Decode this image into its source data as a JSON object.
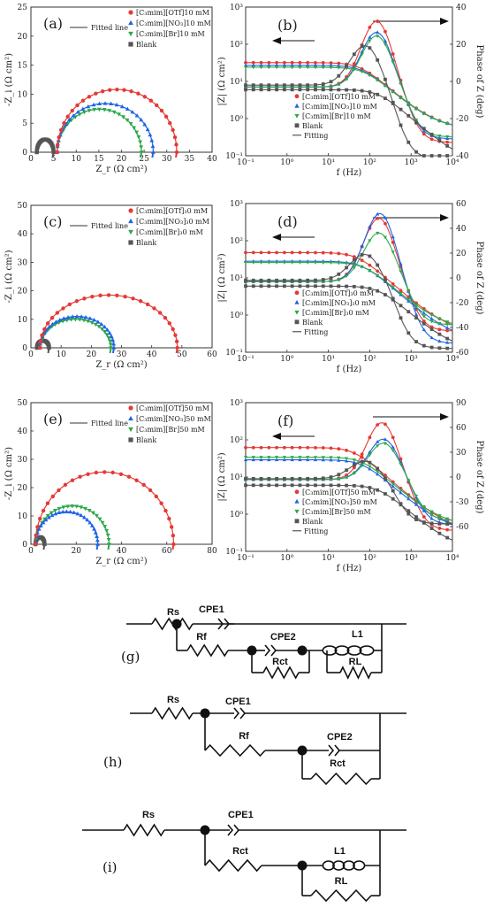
{
  "colors": {
    "otf": "#e53935",
    "no3": "#1e64e6",
    "br": "#2ea84a",
    "blank": "#555555"
  },
  "chart_data": [
    {
      "type": "scatter",
      "panel": "(a)",
      "xlabel": "Z_r (Ω cm²)",
      "ylabel": "-Z_i (Ω cm²)",
      "xlim": [
        0,
        40
      ],
      "ylim": [
        0,
        25
      ],
      "xticks": [
        0,
        5,
        10,
        15,
        20,
        25,
        30,
        35,
        40
      ],
      "yticks": [
        0,
        5,
        10,
        15,
        20,
        25
      ],
      "fit_label": "Fitted line",
      "series": [
        {
          "name": "[C3mim][OTf]10 mM",
          "color": "otf",
          "marker": "circle",
          "r0": 5.8,
          "r1": 32.2,
          "peak": 10.8
        },
        {
          "name": "[C3mim][NO3]10 mM",
          "color": "no3",
          "marker": "triangle-up",
          "r0": 5.8,
          "r1": 27.0,
          "peak": 8.4
        },
        {
          "name": "[C3mim][Br]10 mM",
          "color": "br",
          "marker": "triangle-down",
          "r0": 5.8,
          "r1": 24.4,
          "peak": 7.4
        },
        {
          "name": "Blank",
          "color": "blank",
          "marker": "square",
          "r0": 1.3,
          "r1": 5.0,
          "peak": 2.2
        }
      ]
    },
    {
      "type": "line",
      "panel": "(b)",
      "xlabel": "f (Hz)",
      "ylabel": "|Z| (Ω cm²)",
      "ylabel2": "Phase of Z (deg)",
      "xscale": "log",
      "yscale": "log",
      "xlim": [
        -1,
        4
      ],
      "ylim": [
        -1,
        3
      ],
      "y2lim": [
        -40,
        40
      ],
      "xticklabels": [
        "10⁻¹",
        "10⁰",
        "10¹",
        "10²",
        "10³",
        "10⁴"
      ],
      "yticklabels": [
        "10⁻¹",
        "10⁰",
        "10¹",
        "10²",
        "10³"
      ],
      "y2ticks": [
        -40,
        -20,
        0,
        20,
        40
      ],
      "fit_label": "Fitting",
      "series": [
        {
          "name": "[C3mim][OTf]10 mM",
          "color": "otf",
          "marker": "circle",
          "zlow": 32,
          "fc": 70,
          "zhigh": 0.5,
          "phase_peak": 36,
          "phase_f": 150,
          "phase_low": -3,
          "phase_high": -30
        },
        {
          "name": "[C3mim][NO3]10 mM",
          "color": "no3",
          "marker": "triangle-up",
          "zlow": 27,
          "fc": 80,
          "zhigh": 0.5,
          "phase_peak": 30,
          "phase_f": 150,
          "phase_low": -3,
          "phase_high": -28
        },
        {
          "name": "[C3mim][Br]10 mM",
          "color": "br",
          "marker": "triangle-down",
          "zlow": 24,
          "fc": 90,
          "zhigh": 0.5,
          "phase_peak": 28,
          "phase_f": 150,
          "phase_low": -3,
          "phase_high": -27
        },
        {
          "name": "Blank",
          "color": "blank",
          "marker": "square",
          "zlow": 6,
          "fc": 200,
          "zhigh": 0.05,
          "phase_peak": 22,
          "phase_f": 80,
          "phase_low": -2,
          "phase_high": -40
        }
      ]
    },
    {
      "type": "scatter",
      "panel": "(c)",
      "xlabel": "Z_r (Ω cm²)",
      "ylabel": "-Z_i (Ω cm²)",
      "xlim": [
        0,
        60
      ],
      "ylim": [
        0,
        50
      ],
      "xticks": [
        0,
        10,
        20,
        30,
        40,
        50,
        60
      ],
      "yticks": [
        0,
        10,
        20,
        30,
        40,
        50
      ],
      "fit_label": "Fitted line",
      "series": [
        {
          "name": "[C3mim][OTf]30 mM",
          "color": "otf",
          "marker": "circle",
          "r0": 3,
          "r1": 48.5,
          "peak": 18.5
        },
        {
          "name": "[C3mim][NO3]30 mM",
          "color": "no3",
          "marker": "triangle-up",
          "r0": 3,
          "r1": 27.5,
          "peak": 11
        },
        {
          "name": "[C3mim][Br]30 mM",
          "color": "br",
          "marker": "triangle-down",
          "r0": 3,
          "r1": 26.5,
          "peak": 10
        },
        {
          "name": "Blank",
          "color": "blank",
          "marker": "square",
          "r0": 2,
          "r1": 6,
          "peak": 2.5
        }
      ]
    },
    {
      "type": "line",
      "panel": "(d)",
      "xlabel": "f (Hz)",
      "ylabel": "|Z| (Ω cm²)",
      "ylabel2": "Phase of Z (deg)",
      "xscale": "log",
      "yscale": "log",
      "xlim": [
        -1,
        4
      ],
      "ylim": [
        -1,
        3
      ],
      "y2lim": [
        -60,
        60
      ],
      "xticklabels": [
        "10⁻¹",
        "10⁰",
        "10¹",
        "10²",
        "10³",
        "10⁴"
      ],
      "yticklabels": [
        "10⁻¹",
        "10⁰",
        "10¹",
        "10²",
        "10³"
      ],
      "y2ticks": [
        -60,
        -40,
        -20,
        0,
        20,
        40,
        60
      ],
      "fit_label": "Fitting",
      "series": [
        {
          "name": "[C3mim][OTf]30 mM",
          "color": "otf",
          "marker": "circle",
          "zlow": 48,
          "fc": 60,
          "zhigh": 0.3,
          "phase_peak": 52,
          "phase_f": 170,
          "phase_low": -3,
          "phase_high": -40
        },
        {
          "name": "[C3mim][NO3]30 mM",
          "color": "no3",
          "marker": "triangle-up",
          "zlow": 28,
          "fc": 80,
          "zhigh": 0.2,
          "phase_peak": 56,
          "phase_f": 180,
          "phase_low": -3,
          "phase_high": -50
        },
        {
          "name": "[C3mim][Br]30 mM",
          "color": "br",
          "marker": "triangle-down",
          "zlow": 26,
          "fc": 90,
          "zhigh": 0.4,
          "phase_peak": 40,
          "phase_f": 170,
          "phase_low": -3,
          "phase_high": -35
        },
        {
          "name": "Blank",
          "color": "blank",
          "marker": "square",
          "zlow": 6,
          "fc": 200,
          "zhigh": 0.1,
          "phase_peak": 22,
          "phase_f": 80,
          "phase_low": -2,
          "phase_high": -55
        }
      ]
    },
    {
      "type": "scatter",
      "panel": "(e)",
      "xlabel": "Z_r (Ω cm²)",
      "ylabel": "-Z_i (Ω cm²)",
      "xlim": [
        0,
        80
      ],
      "ylim": [
        0,
        50
      ],
      "xticks": [
        0,
        20,
        40,
        60,
        80
      ],
      "yticks": [
        0,
        10,
        20,
        30,
        40,
        50
      ],
      "fit_label": "Fitted line",
      "series": [
        {
          "name": "[C3mim][OTf]50 mM",
          "color": "otf",
          "marker": "circle",
          "r0": 2,
          "r1": 63,
          "peak": 25.5
        },
        {
          "name": "[C3mim][NO3]50 mM",
          "color": "no3",
          "marker": "triangle-up",
          "r0": 2,
          "r1": 29.5,
          "peak": 11.5
        },
        {
          "name": "[C3mim][Br]50 mM",
          "color": "br",
          "marker": "triangle-down",
          "r0": 2,
          "r1": 34.5,
          "peak": 13.5
        },
        {
          "name": "Blank",
          "color": "blank",
          "marker": "square",
          "r0": 2,
          "r1": 6,
          "peak": 2.5
        }
      ]
    },
    {
      "type": "line",
      "panel": "(f)",
      "xlabel": "f (Hz)",
      "ylabel": "|Z| (Ω cm²)",
      "ylabel2": "Phase of Z (deg)",
      "xscale": "log",
      "yscale": "log",
      "xlim": [
        -1,
        4
      ],
      "ylim": [
        -1,
        3
      ],
      "y2lim": [
        -90,
        90
      ],
      "xticklabels": [
        "10⁻¹",
        "10⁰",
        "10¹",
        "10²",
        "10³",
        "10⁴"
      ],
      "yticklabels": [
        "10⁻¹",
        "10⁰",
        "10¹",
        "10²",
        "10³"
      ],
      "y2ticks": [
        -60,
        -30,
        0,
        30,
        60,
        90
      ],
      "fit_label": "Fitting",
      "series": [
        {
          "name": "[C3mim][OTf]50 mM",
          "color": "otf",
          "marker": "circle",
          "zlow": 62,
          "fc": 50,
          "zhigh": 0.3,
          "phase_peak": 70,
          "phase_f": 200,
          "phase_low": -3,
          "phase_high": -62
        },
        {
          "name": "[C3mim][NO3]50 mM",
          "color": "no3",
          "marker": "triangle-up",
          "zlow": 29,
          "fc": 80,
          "zhigh": 0.35,
          "phase_peak": 50,
          "phase_f": 220,
          "phase_low": -3,
          "phase_high": -55
        },
        {
          "name": "[C3mim][Br]50 mM",
          "color": "br",
          "marker": "triangle-down",
          "zlow": 34,
          "fc": 80,
          "zhigh": 0.45,
          "phase_peak": 45,
          "phase_f": 220,
          "phase_low": -3,
          "phase_high": -50
        },
        {
          "name": "Blank",
          "color": "blank",
          "marker": "square",
          "zlow": 6,
          "fc": 200,
          "zhigh": 0.1,
          "phase_peak": 22,
          "phase_f": 80,
          "phase_low": -2,
          "phase_high": -55
        }
      ]
    }
  ],
  "circuits": [
    {
      "panel": "(g)",
      "labels": {
        "rs": "Rs",
        "cpe1": "CPE1",
        "rf": "Rf",
        "cpe2": "CPE2",
        "rct": "Rct",
        "l1": "L1",
        "rl": "RL"
      }
    },
    {
      "panel": "(h)",
      "labels": {
        "rs": "Rs",
        "cpe1": "CPE1",
        "rf": "Rf",
        "cpe2": "CPE2",
        "rct": "Rct"
      }
    },
    {
      "panel": "(i)",
      "labels": {
        "rs": "Rs",
        "cpe1": "CPE1",
        "rct": "Rct",
        "l1": "L1",
        "rl": "RL"
      }
    }
  ]
}
